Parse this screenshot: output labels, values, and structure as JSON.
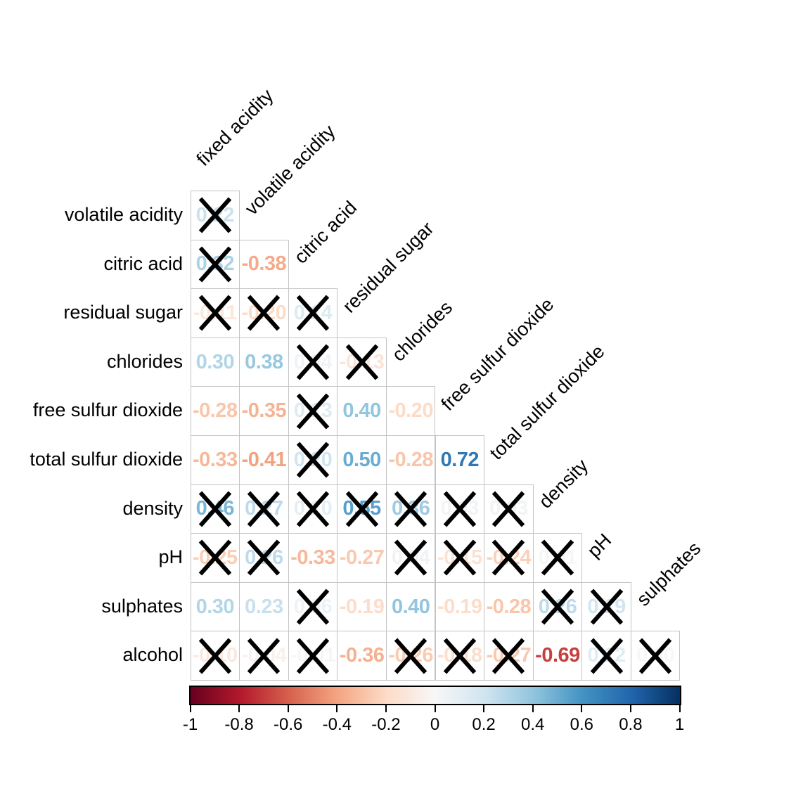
{
  "chart_data": {
    "type": "heatmap",
    "subtype": "correlation-matrix-lower-triangle",
    "title": "",
    "variables": [
      "fixed acidity",
      "volatile acidity",
      "citric acid",
      "residual sugar",
      "chlorides",
      "free sulfur dioxide",
      "total sulfur dioxide",
      "density",
      "pH",
      "sulphates",
      "alcohol"
    ],
    "column_labels": [
      "fixed acidity",
      "volatile acidity",
      "citric acid",
      "residual sugar",
      "chlorides",
      "free sulfur dioxide",
      "total sulfur dioxide",
      "density",
      "pH",
      "sulphates"
    ],
    "rows": [
      {
        "label": "volatile acidity",
        "cells": [
          {
            "value": "0.22",
            "crossed": true
          }
        ]
      },
      {
        "label": "citric acid",
        "cells": [
          {
            "value": "0.32",
            "crossed": true
          },
          {
            "value": "-0.38",
            "crossed": false
          }
        ]
      },
      {
        "label": "residual sugar",
        "cells": [
          {
            "value": "-0.11",
            "crossed": true
          },
          {
            "value": "-0.20",
            "crossed": true
          },
          {
            "value": "0.14",
            "crossed": true
          }
        ]
      },
      {
        "label": "chlorides",
        "cells": [
          {
            "value": "0.30",
            "crossed": false
          },
          {
            "value": "0.38",
            "crossed": false
          },
          {
            "value": "0.04",
            "crossed": true
          },
          {
            "value": "-0.13",
            "crossed": true
          }
        ]
      },
      {
        "label": "free sulfur dioxide",
        "cells": [
          {
            "value": "-0.28",
            "crossed": false
          },
          {
            "value": "-0.35",
            "crossed": false
          },
          {
            "value": "0.13",
            "crossed": true
          },
          {
            "value": "0.40",
            "crossed": false
          },
          {
            "value": "-0.20",
            "crossed": false
          }
        ]
      },
      {
        "label": "total sulfur dioxide",
        "cells": [
          {
            "value": "-0.33",
            "crossed": false
          },
          {
            "value": "-0.41",
            "crossed": false
          },
          {
            "value": "0.20",
            "crossed": true
          },
          {
            "value": "0.50",
            "crossed": false
          },
          {
            "value": "-0.28",
            "crossed": false
          },
          {
            "value": "0.72",
            "crossed": false
          }
        ]
      },
      {
        "label": "density",
        "cells": [
          {
            "value": "0.46",
            "crossed": true
          },
          {
            "value": "0.27",
            "crossed": true
          },
          {
            "value": "0.10",
            "crossed": true
          },
          {
            "value": "0.55",
            "crossed": true
          },
          {
            "value": "0.36",
            "crossed": true
          },
          {
            "value": "0.03",
            "crossed": true
          },
          {
            "value": "0.03",
            "crossed": true
          }
        ]
      },
      {
        "label": "pH",
        "cells": [
          {
            "value": "-0.25",
            "crossed": true
          },
          {
            "value": "0.26",
            "crossed": true
          },
          {
            "value": "-0.33",
            "crossed": false
          },
          {
            "value": "-0.27",
            "crossed": false
          },
          {
            "value": "0.04",
            "crossed": true
          },
          {
            "value": "-0.15",
            "crossed": true
          },
          {
            "value": "-0.24",
            "crossed": true
          },
          {
            "value": "0.01",
            "crossed": true
          }
        ]
      },
      {
        "label": "sulphates",
        "cells": [
          {
            "value": "0.30",
            "crossed": false
          },
          {
            "value": "0.23",
            "crossed": false
          },
          {
            "value": "0.06",
            "crossed": true
          },
          {
            "value": "-0.19",
            "crossed": false
          },
          {
            "value": "0.40",
            "crossed": false
          },
          {
            "value": "-0.19",
            "crossed": false
          },
          {
            "value": "-0.28",
            "crossed": false
          },
          {
            "value": "0.26",
            "crossed": true
          },
          {
            "value": "0.19",
            "crossed": true
          }
        ]
      },
      {
        "label": "alcohol",
        "cells": [
          {
            "value": "-0.10",
            "crossed": true
          },
          {
            "value": "-0.04",
            "crossed": true
          },
          {
            "value": "-0.01",
            "crossed": true
          },
          {
            "value": "-0.36",
            "crossed": false
          },
          {
            "value": "-0.26",
            "crossed": true
          },
          {
            "value": "-0.18",
            "crossed": true
          },
          {
            "value": "-0.27",
            "crossed": true
          },
          {
            "value": "-0.69",
            "crossed": false
          },
          {
            "value": "0.12",
            "crossed": true
          },
          {
            "value": "0.00",
            "crossed": true
          }
        ]
      }
    ],
    "colorbar": {
      "min": -1,
      "max": 1,
      "tick_labels": [
        "-1",
        "-0.8",
        "-0.6",
        "-0.4",
        "-0.2",
        "0",
        "0.2",
        "0.4",
        "0.6",
        "0.8",
        "1"
      ],
      "palette": [
        "#67001F",
        "#B2182B",
        "#D6604D",
        "#F4A582",
        "#FDDBC7",
        "#F7F7F7",
        "#D1E5F0",
        "#92C5DE",
        "#4393C3",
        "#2166AC",
        "#053061"
      ],
      "position": "bottom"
    },
    "marks": {
      "cross_color": "#000000",
      "grid_color": "#c4c4c4"
    }
  }
}
